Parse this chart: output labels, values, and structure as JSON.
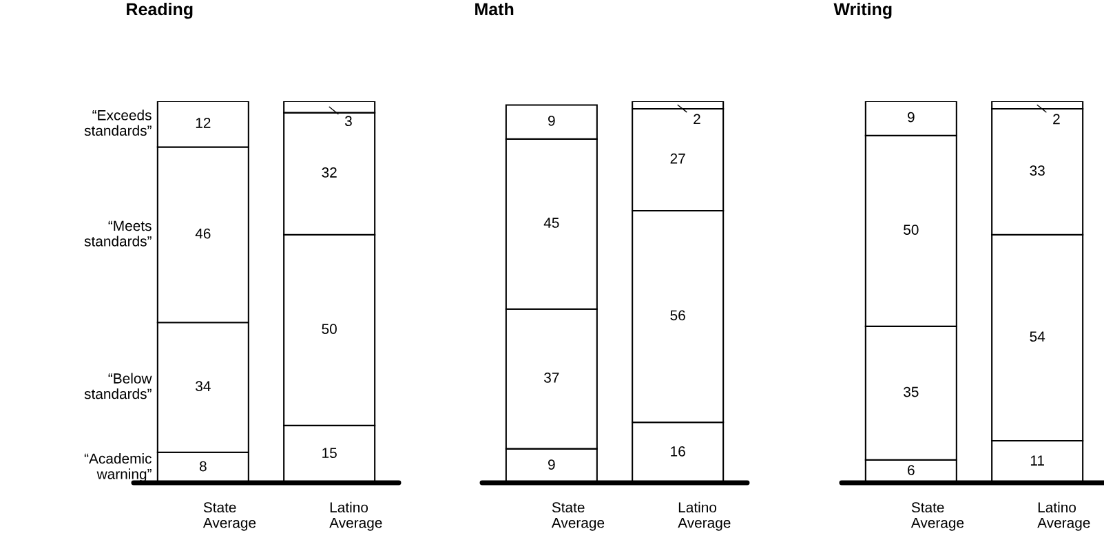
{
  "chart_data": [
    {
      "type": "bar",
      "title": "Reading",
      "stacked": true,
      "data_labels": true,
      "legend": false,
      "grid": false,
      "categories": [
        "State\nAverage",
        "Latino\nAverage"
      ],
      "series": [
        {
          "name": "“Academic\nwarning”",
          "color": "#ffffff",
          "values": [
            8,
            15
          ]
        },
        {
          "name": "“Below\nstandards”",
          "color": "#ffffff",
          "values": [
            34,
            50
          ]
        },
        {
          "name": "“Meets\nstandards”",
          "color": "#ffffff",
          "values": [
            46,
            32
          ]
        },
        {
          "name": "“Exceeds\nstandards”",
          "color": "#ffffff",
          "values": [
            12,
            3
          ]
        }
      ]
    },
    {
      "type": "bar",
      "title": "Math",
      "stacked": true,
      "data_labels": true,
      "legend": false,
      "grid": false,
      "categories": [
        "State\nAverage",
        "Latino\nAverage"
      ],
      "series": [
        {
          "color": "#ffffff",
          "values": [
            9,
            16
          ]
        },
        {
          "color": "#ffffff",
          "values": [
            37,
            56
          ]
        },
        {
          "color": "#ffffff",
          "values": [
            45,
            27
          ]
        },
        {
          "color": "#ffffff",
          "values": [
            9,
            2
          ]
        }
      ]
    },
    {
      "type": "bar",
      "title": "Writing",
      "stacked": true,
      "data_labels": true,
      "legend": false,
      "grid": false,
      "categories": [
        "State\nAverage",
        "Latino\nAverage"
      ],
      "series": [
        {
          "color": "#ffffff",
          "values": [
            6,
            11
          ]
        },
        {
          "color": "#ffffff",
          "values": [
            35,
            54
          ]
        },
        {
          "color": "#ffffff",
          "values": [
            50,
            33
          ]
        },
        {
          "color": "#ffffff",
          "values": [
            9,
            2
          ]
        }
      ]
    }
  ]
}
